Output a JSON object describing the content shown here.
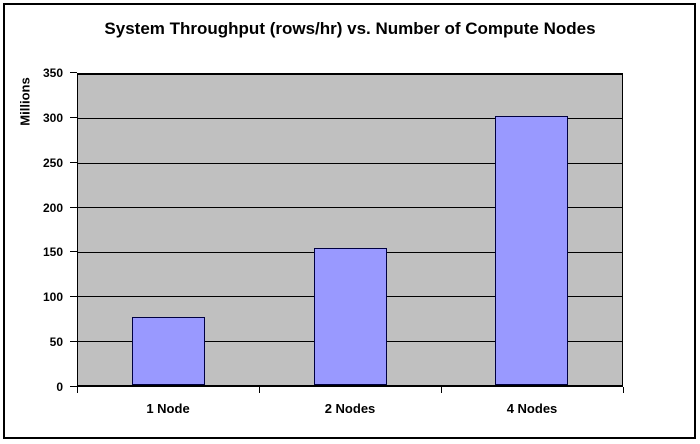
{
  "chart_data": {
    "type": "bar",
    "title": "System Throughput (rows/hr) vs. Number of Compute Nodes",
    "categories": [
      "1 Node",
      "2 Nodes",
      "4 Nodes"
    ],
    "values": [
      76,
      154,
      303
    ],
    "xlabel": "",
    "ylabel": "Millions",
    "ylim": [
      0,
      350
    ],
    "yticks": [
      0,
      50,
      100,
      150,
      200,
      250,
      300,
      350
    ],
    "grid": true,
    "legend": false,
    "colors": {
      "background": "#FFFFFF",
      "frame_border": "#000000",
      "plot_bg": "#C0C0C0",
      "gridline": "#000000",
      "bar_fill": "#9999FF",
      "bar_border": "#000040",
      "text": "#000000"
    }
  }
}
